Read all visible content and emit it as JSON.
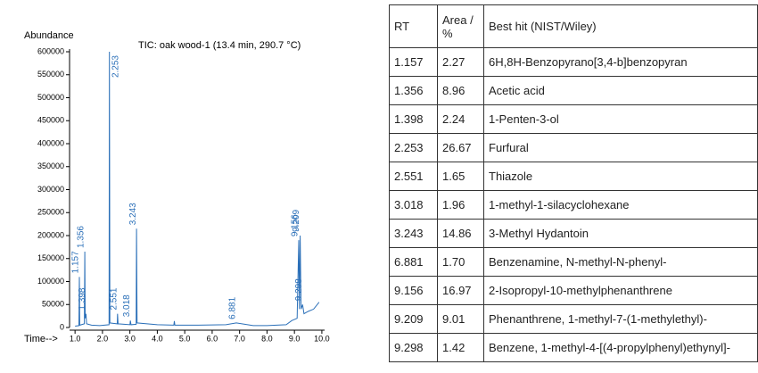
{
  "chart_data": {
    "type": "line",
    "title": "TIC: oak wood-1 (13.4 min, 290.7 °C)",
    "y_label": "Abundance",
    "x_label": "Time-->",
    "color": "#2a6fb8",
    "x": [
      1.0,
      1.14,
      1.157,
      1.17,
      1.34,
      1.356,
      1.37,
      1.398,
      1.42,
      1.6,
      1.9,
      2.24,
      2.253,
      2.27,
      2.54,
      2.551,
      2.57,
      3.0,
      3.018,
      3.04,
      3.23,
      3.243,
      3.26,
      4.0,
      4.6,
      4.62,
      4.64,
      5.5,
      6.5,
      6.881,
      7.5,
      8.0,
      8.7,
      8.9,
      9.1,
      9.156,
      9.18,
      9.209,
      9.24,
      9.298,
      9.35,
      9.5,
      9.7,
      9.9
    ],
    "values": [
      3000,
      4000,
      110000,
      5000,
      8000,
      165000,
      20000,
      30000,
      8000,
      5000,
      4000,
      6000,
      600000,
      10000,
      8000,
      30000,
      8000,
      6000,
      15000,
      6000,
      7000,
      215000,
      10000,
      6000,
      5000,
      14000,
      5000,
      5000,
      6000,
      10000,
      4000,
      4000,
      6000,
      15000,
      20000,
      190000,
      40000,
      200000,
      40000,
      50000,
      30000,
      35000,
      40000,
      55000
    ],
    "peaks": {
      "x": [
        1.157,
        1.356,
        1.398,
        2.253,
        2.551,
        3.018,
        3.243,
        6.881,
        9.156,
        9.209,
        9.298
      ],
      "values": [
        110000,
        165000,
        30000,
        600000,
        30000,
        15000,
        215000,
        10000,
        190000,
        200000,
        50000
      ]
    },
    "xlim": [
      0.8,
      10.1
    ],
    "ylim": [
      0,
      600000
    ],
    "xticks": [
      {
        "value": 1,
        "label": "1.0"
      },
      {
        "value": 2,
        "label": "2.0"
      },
      {
        "value": 3,
        "label": "3.0"
      },
      {
        "value": 4,
        "label": "4.0"
      },
      {
        "value": 5,
        "label": "5.0"
      },
      {
        "value": 6,
        "label": "6.0"
      },
      {
        "value": 7,
        "label": "7.0"
      },
      {
        "value": 8,
        "label": "8.0"
      },
      {
        "value": 9,
        "label": "9.0"
      },
      {
        "value": 10,
        "label": "10.0"
      }
    ],
    "yticks": [
      0,
      50000,
      100000,
      150000,
      200000,
      250000,
      300000,
      350000,
      400000,
      450000,
      500000,
      550000,
      600000
    ]
  },
  "table": {
    "columns": [
      "RT",
      "Area / %",
      "Best hit (NIST/Wiley)"
    ],
    "rows": [
      [
        "1.157",
        "2.27",
        "6H,8H-Benzopyrano[3,4-b]benzopyran"
      ],
      [
        "1.356",
        "8.96",
        "Acetic acid"
      ],
      [
        "1.398",
        "2.24",
        "1-Penten-3-ol"
      ],
      [
        "2.253",
        "26.67",
        "Furfural"
      ],
      [
        "2.551",
        "1.65",
        "Thiazole"
      ],
      [
        "3.018",
        "1.96",
        "1-methyl-1-silacyclohexane"
      ],
      [
        "3.243",
        "14.86",
        "3-Methyl Hydantoin"
      ],
      [
        "6.881",
        "1.70",
        "Benzenamine, N-methyl-N-phenyl-"
      ],
      [
        "9.156",
        "16.97",
        "2-Isopropyl-10-methylphenanthrene"
      ],
      [
        "9.209",
        "9.01",
        "Phenanthrene, 1-methyl-7-(1-methylethyl)-"
      ],
      [
        "9.298",
        "1.42",
        "Benzene, 1-methyl-4-[(4-propylphenyl)ethynyl]-"
      ]
    ]
  }
}
